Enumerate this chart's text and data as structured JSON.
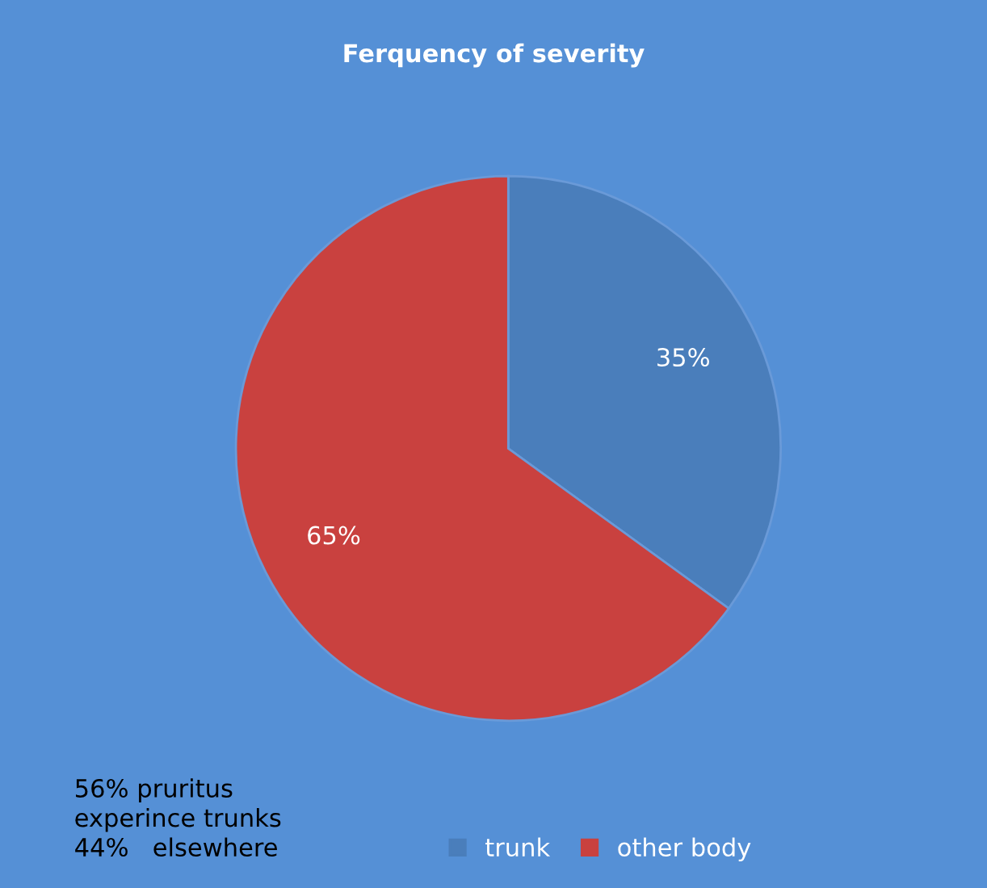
{
  "chart_data": {
    "type": "pie",
    "title": "Ferquency of severity",
    "categories": [
      "trunk",
      "other body"
    ],
    "values": [
      35,
      65
    ],
    "colors": [
      "#4a7ebb",
      "#c9413f"
    ],
    "value_labels": [
      "35%",
      "65%"
    ],
    "legend": "bottom",
    "annotations": [
      "56% pruritus\nexperince trunks\n44%   elsewhere"
    ]
  }
}
